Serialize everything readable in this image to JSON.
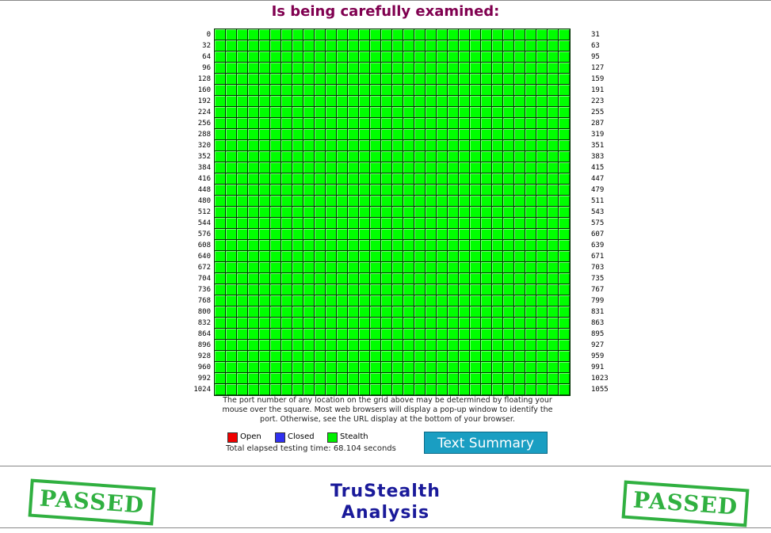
{
  "header": {
    "title": "Is being carefully examined:"
  },
  "port_grid": {
    "row_start_labels": [
      0,
      32,
      64,
      96,
      128,
      160,
      192,
      224,
      256,
      288,
      320,
      352,
      384,
      416,
      448,
      480,
      512,
      544,
      576,
      608,
      640,
      672,
      704,
      736,
      768,
      800,
      832,
      864,
      896,
      928,
      960,
      992,
      1024
    ],
    "row_end_labels": [
      31,
      63,
      95,
      127,
      159,
      191,
      223,
      255,
      287,
      319,
      351,
      383,
      415,
      447,
      479,
      511,
      543,
      575,
      607,
      639,
      671,
      703,
      735,
      767,
      799,
      831,
      863,
      895,
      927,
      959,
      991,
      1023,
      1055
    ]
  },
  "note": "The port number of any location on the grid above may be determined by floating your mouse over the square. Most web browsers will display a pop-up window to identify the port. Otherwise, see the URL display at the bottom of your browser.",
  "legend": [
    "Open",
    "Closed",
    "Stealth"
  ],
  "elapsed": "Total elapsed testing time: 68.104 seconds",
  "button": "Text Summary",
  "footer": {
    "stamp_left": "PASSED",
    "title_line1": "TruStealth",
    "title_line2": "Analysis",
    "stamp_right": "PASSED"
  }
}
